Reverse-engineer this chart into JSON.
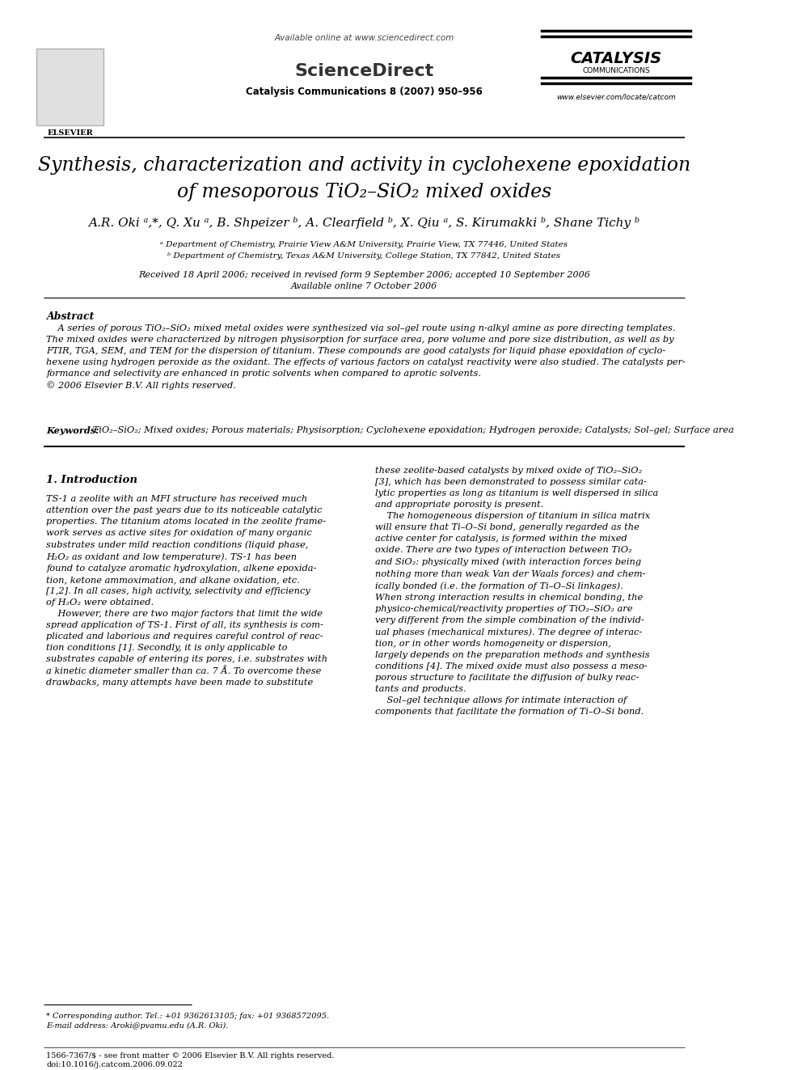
{
  "bg_color": "#ffffff",
  "header_available_online": "Available online at www.sciencedirect.com",
  "header_journal": "Catalysis Communications 8 (2007) 950–956",
  "header_sciencedirect": "ScienceDirect",
  "header_catalysis": "CATALYSIS",
  "header_communications": "COMMUNICATIONS",
  "header_url": "www.elsevier.com/locate/catcom",
  "header_elsevier": "ELSEVIER",
  "title_line1": "Synthesis, characterization and activity in cyclohexene epoxidation",
  "title_line2": "of mesoporous TiO₂–SiO₂ mixed oxides",
  "authors": "A.R. Oki ᵃ,*, Q. Xu ᵃ, B. Shpeizer ᵇ, A. Clearfield ᵇ, X. Qiu ᵃ, S. Kirumakki ᵇ, Shane Tichy ᵇ",
  "affil_a": "ᵃ Department of Chemistry, Prairie View A&M University, Prairie View, TX 77446, United States",
  "affil_b": "ᵇ Department of Chemistry, Texas A&M University, College Station, TX 77842, United States",
  "received": "Received 18 April 2006; received in revised form 9 September 2006; accepted 10 September 2006",
  "available_online": "Available online 7 October 2006",
  "abstract_label": "Abstract",
  "keywords_label": "Keywords:",
  "keywords_text": " TiO₂–SiO₂; Mixed oxides; Porous materials; Physisorption; Cyclohexene epoxidation; Hydrogen peroxide; Catalysts; Sol–gel; Surface area",
  "section1_title": "1. Introduction",
  "footnote_corresponding": "* Corresponding author. Tel.: +01 9362613105; fax: +01 9368572095.",
  "footnote_email": "E-mail address: Aroki@pvamu.edu (A.R. Oki).",
  "footer_issn": "1566-7367/$ - see front matter © 2006 Elsevier B.V. All rights reserved.",
  "footer_doi": "doi:10.1016/j.catcom.2006.09.022"
}
